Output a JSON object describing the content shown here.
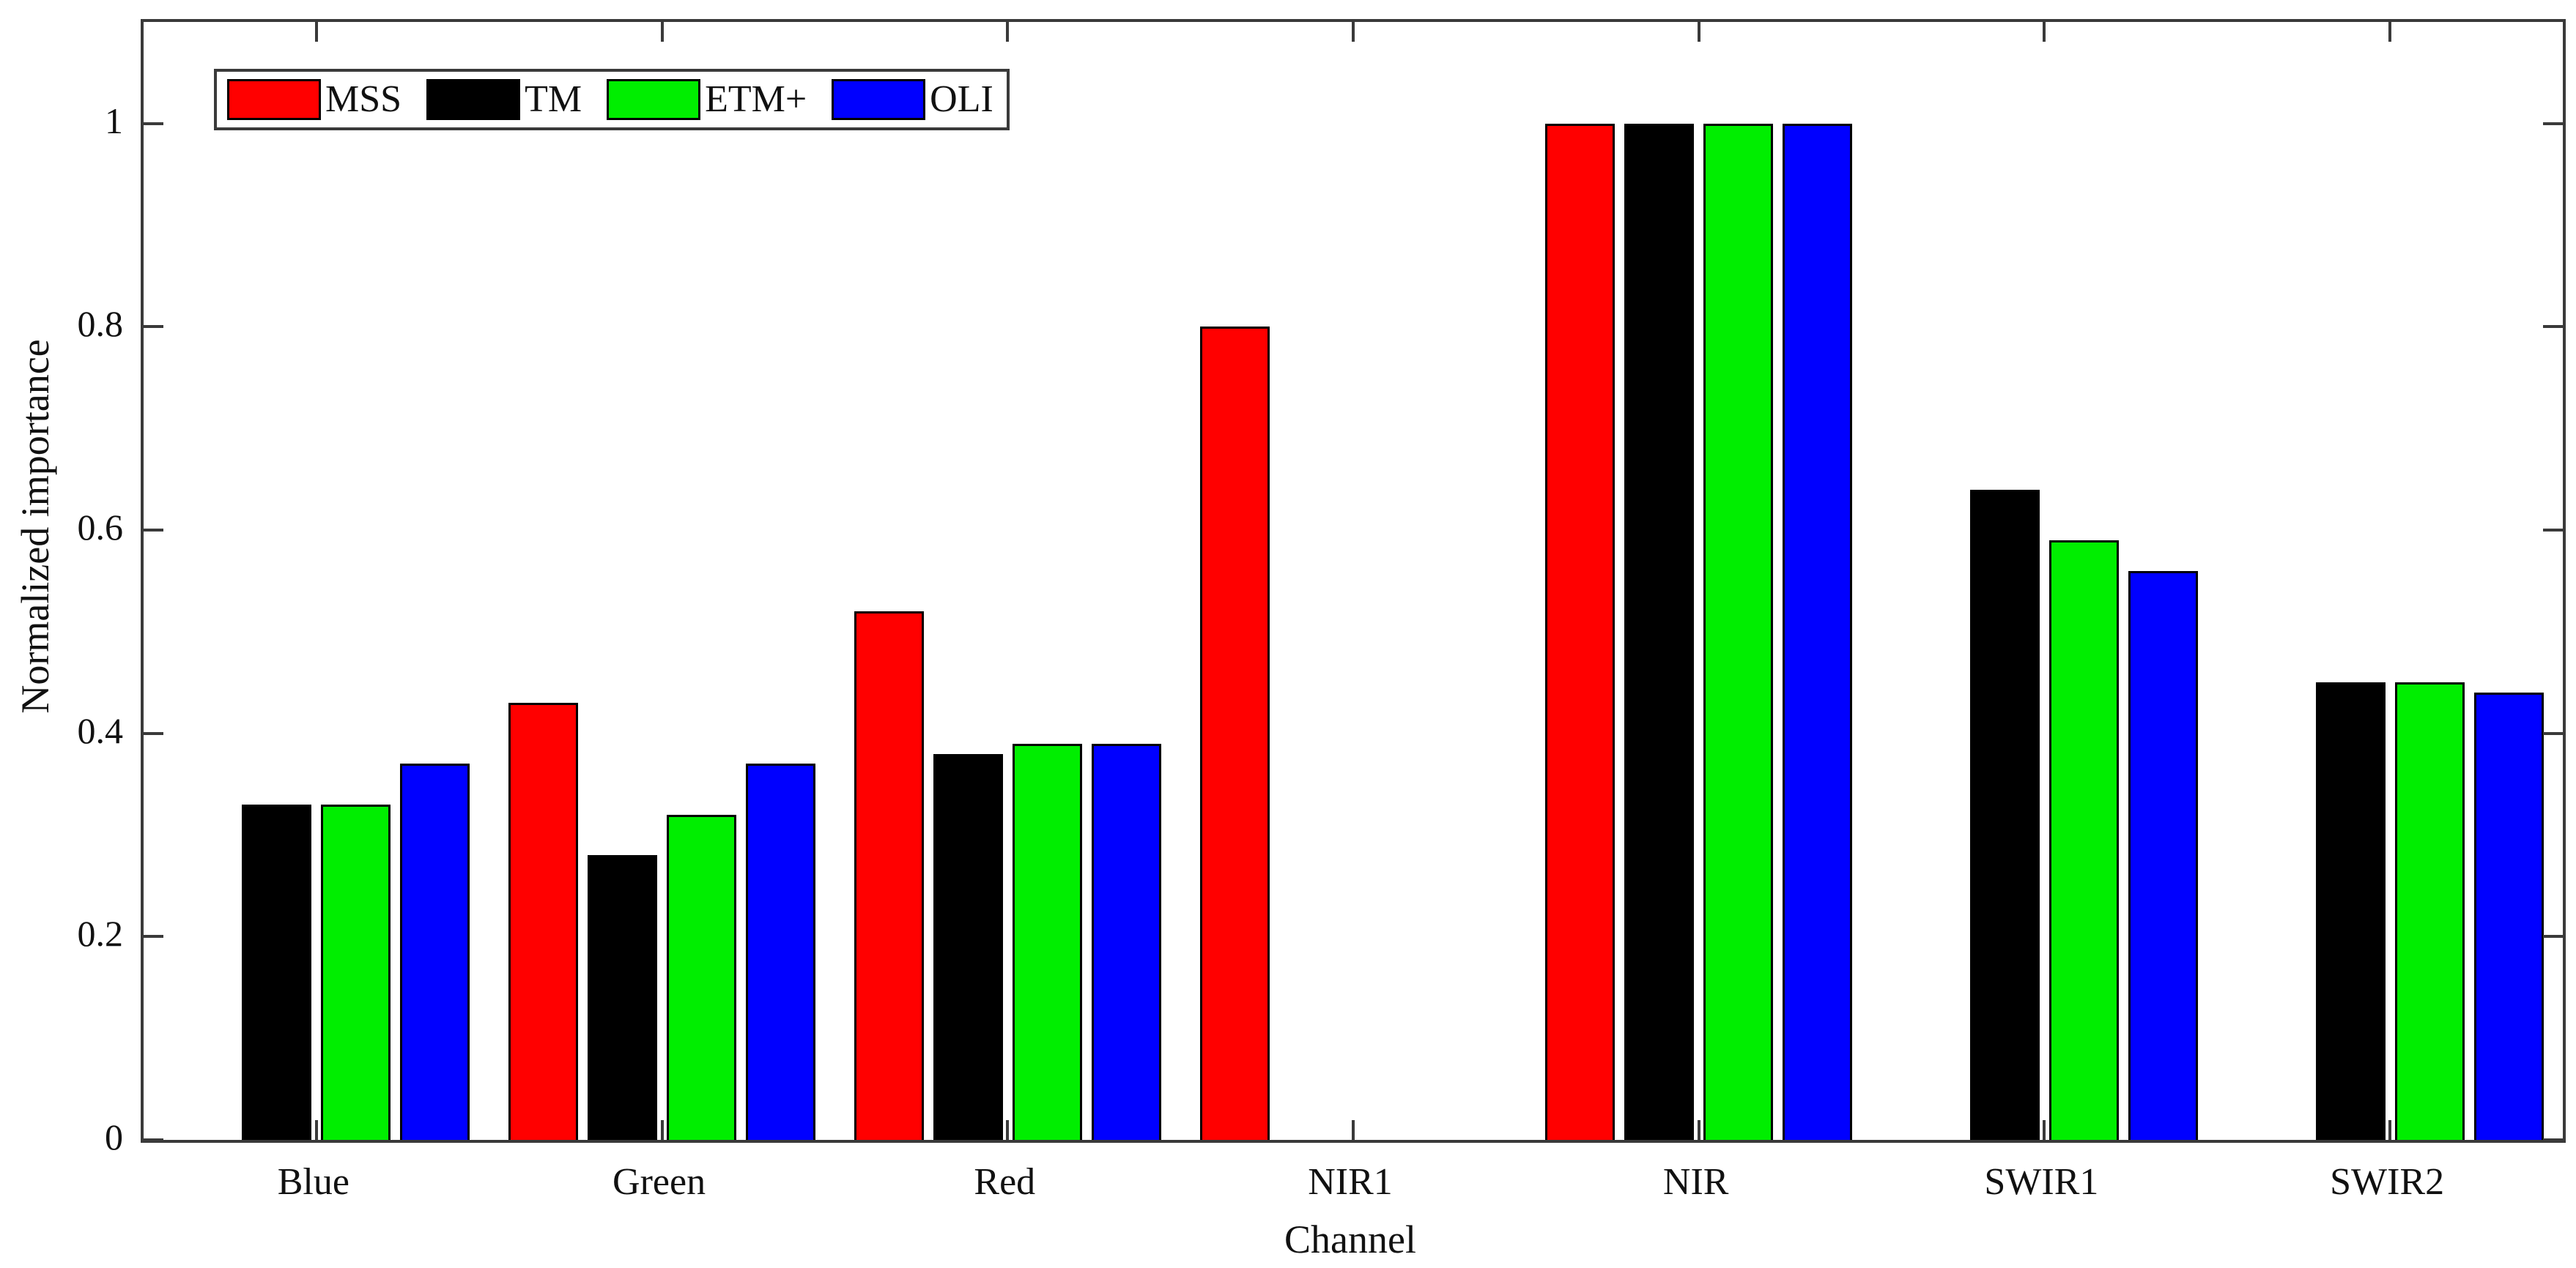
{
  "figure": {
    "background": "#ffffff",
    "axis_color": "#3a3a3a",
    "text_color": "#111111"
  },
  "chart_data": {
    "type": "bar",
    "title": "",
    "xlabel": "Channel",
    "ylabel": "Normalized importance",
    "categories": [
      "Blue",
      "Green",
      "Red",
      "NIR1",
      "NIR",
      "SWIR1",
      "SWIR2"
    ],
    "series": [
      {
        "name": "MSS",
        "color": "#ff0000",
        "values": [
          0,
          0.43,
          0.52,
          0.8,
          1.0,
          0,
          0
        ]
      },
      {
        "name": "TM",
        "color": "#000000",
        "values": [
          0.33,
          0.28,
          0.38,
          0,
          1.0,
          0.64,
          0.45
        ]
      },
      {
        "name": "ETM+",
        "color": "#00ee00",
        "values": [
          0.33,
          0.32,
          0.39,
          0,
          1.0,
          0.59,
          0.45
        ]
      },
      {
        "name": "OLI",
        "color": "#0000ff",
        "values": [
          0.37,
          0.37,
          0.39,
          0,
          1.0,
          0.56,
          0.44
        ]
      }
    ],
    "ylim": [
      0,
      1.1
    ],
    "yticks": [
      0,
      0.2,
      0.4,
      0.6,
      0.8,
      1
    ],
    "ytick_labels": [
      "0",
      "0.2",
      "0.4",
      "0.6",
      "0.8",
      "1"
    ],
    "grid": false,
    "legend_position": "top-left",
    "box": true
  }
}
